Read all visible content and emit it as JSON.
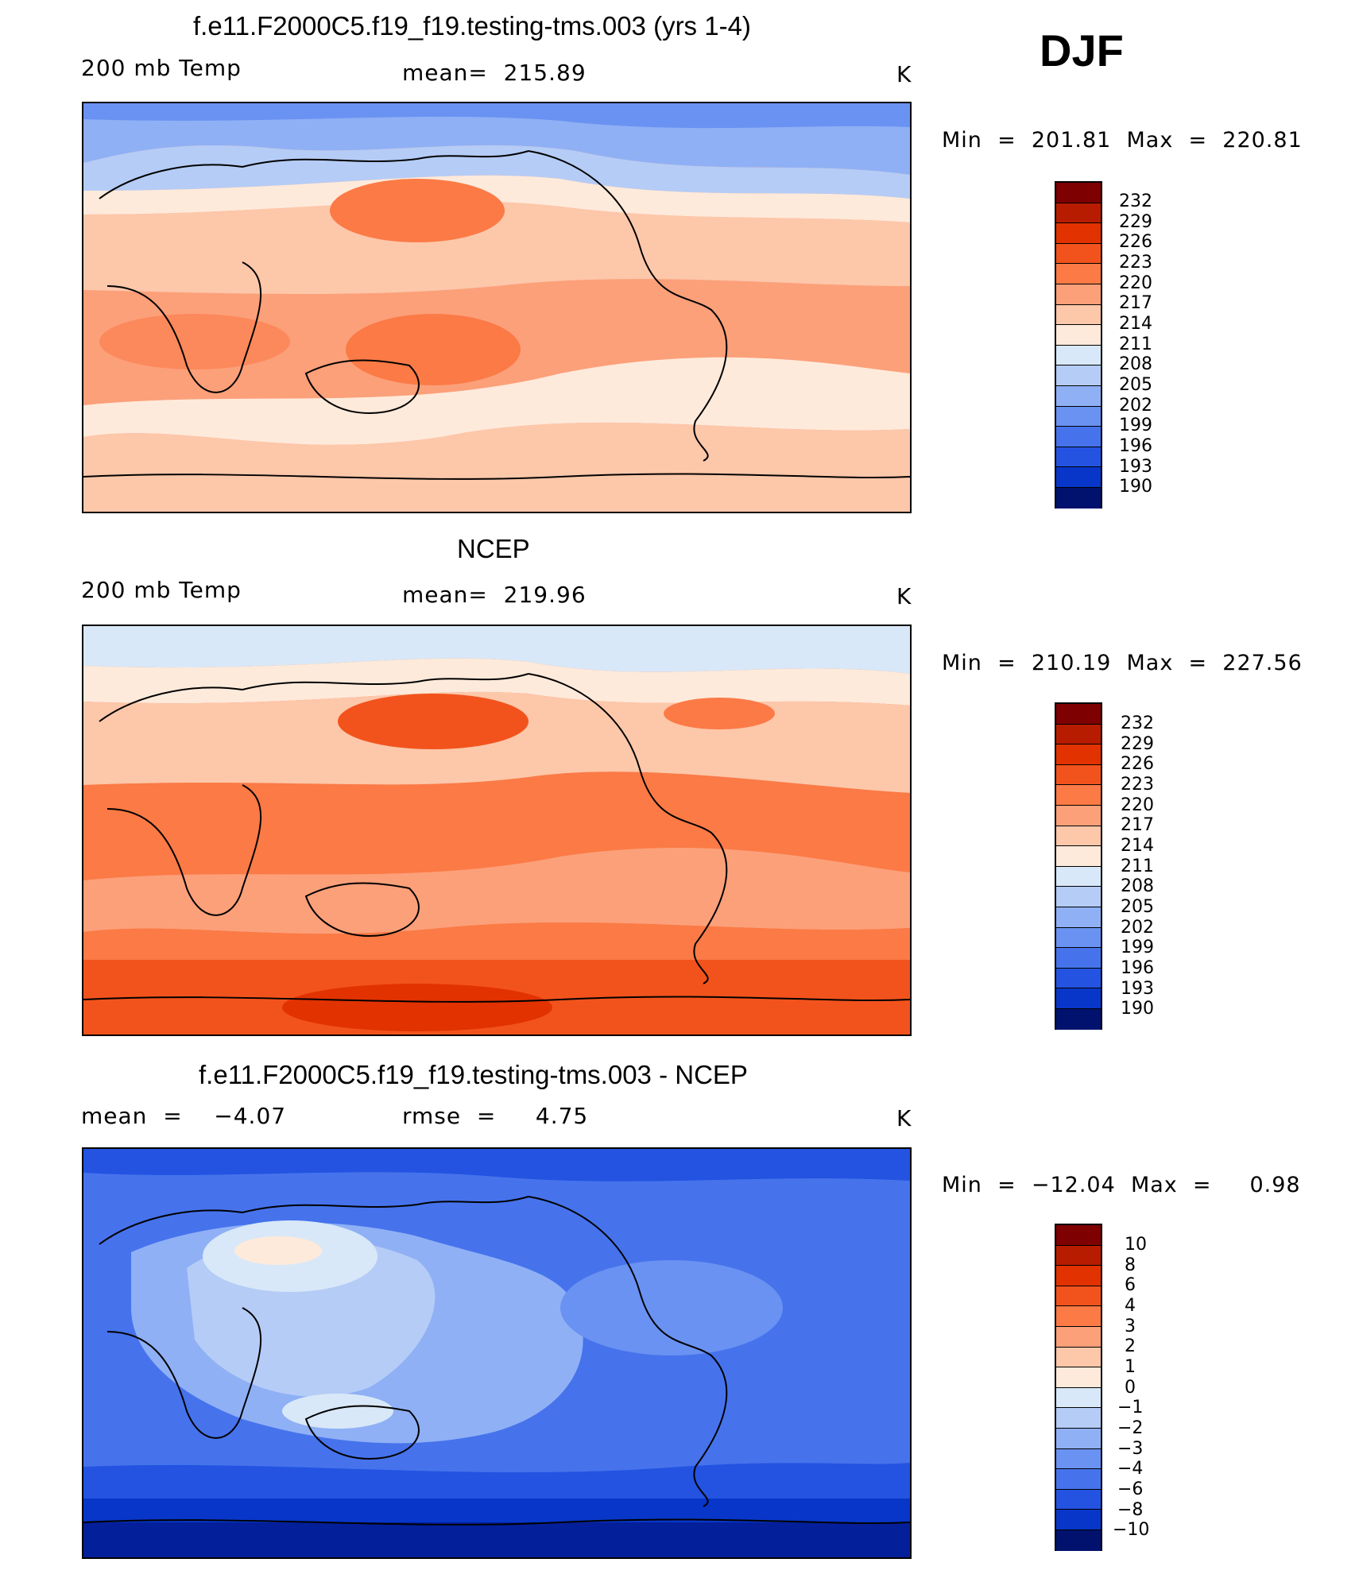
{
  "figure": {
    "season": "DJF"
  },
  "panels": [
    {
      "title": "f.e11.F2000C5.f19_f19.testing-tms.003 (yrs 1-4)",
      "field": "200 mb Temp",
      "stat": "mean=  215.89",
      "units": "K",
      "minmax": "Min  =  201.81  Max  =  220.81",
      "map_description": "global 200 mb temperature, model",
      "levels": [
        "232",
        "229",
        "226",
        "223",
        "220",
        "217",
        "214",
        "211",
        "208",
        "205",
        "202",
        "199",
        "196",
        "193",
        "190"
      ],
      "colors": [
        "#7e0000",
        "#b81c00",
        "#e23200",
        "#f2531c",
        "#fb7a46",
        "#fca07a",
        "#fdc7aa",
        "#feeadb",
        "#d8e8f8",
        "#b5ccf6",
        "#8fb0f5",
        "#6a92f2",
        "#4673ec",
        "#2353e0",
        "#0836c8",
        "#041f9a",
        "#00126e"
      ]
    },
    {
      "title": "NCEP",
      "field": "200 mb Temp",
      "stat": "mean=  219.96",
      "units": "K",
      "minmax": "Min  =  210.19  Max  =  227.56",
      "map_description": "global 200 mb temperature, reanalysis",
      "levels": [
        "232",
        "229",
        "226",
        "223",
        "220",
        "217",
        "214",
        "211",
        "208",
        "205",
        "202",
        "199",
        "196",
        "193",
        "190"
      ],
      "colors": [
        "#7e0000",
        "#b81c00",
        "#e23200",
        "#f2531c",
        "#fb7a46",
        "#fca07a",
        "#fdc7aa",
        "#feeadb",
        "#d8e8f8",
        "#b5ccf6",
        "#8fb0f5",
        "#6a92f2",
        "#4673ec",
        "#2353e0",
        "#0836c8",
        "#041f9a",
        "#00126e"
      ]
    },
    {
      "title": "f.e11.F2000C5.f19_f19.testing-tms.003 - NCEP",
      "field": "mean  =    −4.07",
      "stat": "rmse  =     4.75",
      "units": "K",
      "minmax": "Min  =  −12.04  Max  =     0.98",
      "map_description": "global 200 mb temperature difference, model minus reanalysis",
      "levels": [
        "10",
        "8",
        "6",
        "4",
        "3",
        "2",
        "1",
        "0",
        "−1",
        "−2",
        "−3",
        "−4",
        "−6",
        "−8",
        "−10"
      ],
      "colors": [
        "#7e0000",
        "#b81c00",
        "#e23200",
        "#f2531c",
        "#fb7a46",
        "#fca07a",
        "#fdc7aa",
        "#feeadb",
        "#d8e8f8",
        "#b5ccf6",
        "#8fb0f5",
        "#6a92f2",
        "#4673ec",
        "#2353e0",
        "#0836c8",
        "#041f9a",
        "#00126e"
      ]
    }
  ]
}
